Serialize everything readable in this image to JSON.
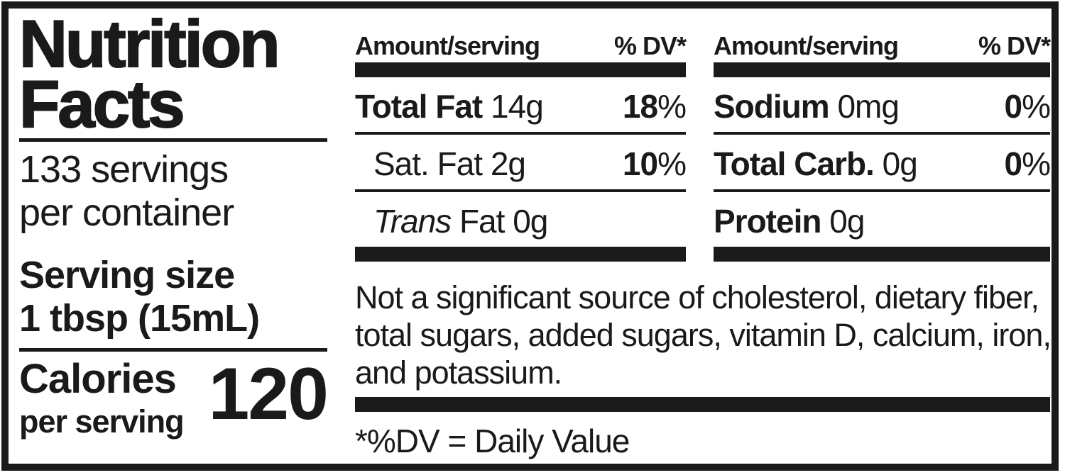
{
  "colors": {
    "ink": "#1a1a1a",
    "paper": "#ffffff"
  },
  "left_panel": {
    "title_line1": "Nutrition",
    "title_line2": "Facts",
    "servings_line1": "133 servings",
    "servings_line2": "per container",
    "serving_size_label": "Serving size",
    "serving_size_value": "1 tbsp (15mL)",
    "calories_label": "Calories",
    "calories_sublabel": "per serving",
    "calories_value": "120"
  },
  "nutrient_columns": [
    {
      "header_amount": "Amount/serving",
      "header_dv": "% DV*",
      "rows": [
        {
          "bold": "Total Fat ",
          "italic": "",
          "plain": "14g",
          "dv_value": "18",
          "dv_sign": "%"
        },
        {
          "bold": "",
          "italic": "",
          "plain": "Sat. Fat 2g",
          "dv_value": "10",
          "dv_sign": "%"
        },
        {
          "bold": "",
          "italic": "Trans ",
          "plain": "Fat 0g",
          "dv_value": "",
          "dv_sign": ""
        }
      ]
    },
    {
      "header_amount": "Amount/serving",
      "header_dv": "% DV*",
      "rows": [
        {
          "bold": "Sodium ",
          "italic": "",
          "plain": "0mg",
          "dv_value": "0",
          "dv_sign": "%"
        },
        {
          "bold": "Total Carb. ",
          "italic": "",
          "plain": "0g",
          "dv_value": "0",
          "dv_sign": "%"
        },
        {
          "bold": "Protein ",
          "italic": "",
          "plain": "0g",
          "dv_value": "",
          "dv_sign": ""
        }
      ]
    }
  ],
  "note_line1": "Not a significant source of cholesterol, dietary fiber,",
  "note_line2": "total sugars, added sugars, vitamin D, calcium, iron,",
  "note_line3": "and potassium.",
  "footnote": "*%DV = Daily Value"
}
